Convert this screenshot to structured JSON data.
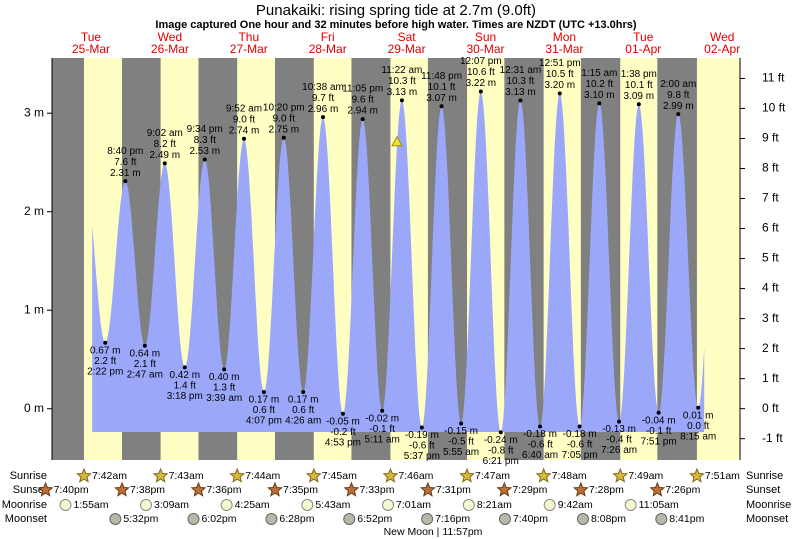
{
  "chart_data": {
    "type": "tide",
    "title": "Punakaiki: rising  spring tide at 2.7m (9.0ft)",
    "subtitle": "Image captured One hour and 32 minutes before high water. Times are NZDT (UTC +13.0hrs)",
    "capture_level": 2.7,
    "ylim": [
      -0.52,
      3.56
    ],
    "yticks": [
      {
        "value": 0,
        "label": "0 m"
      },
      {
        "value": 1,
        "label": "1 m"
      },
      {
        "value": 2,
        "label": "2 m"
      },
      {
        "value": 3,
        "label": "3 m"
      }
    ],
    "y2lim": [
      -1.71,
      11.68
    ],
    "y2ticks": [
      {
        "value": -1,
        "label": "-1 ft"
      },
      {
        "value": 0,
        "label": "0 ft"
      },
      {
        "value": 1,
        "label": "1 ft"
      },
      {
        "value": 2,
        "label": "2 ft"
      },
      {
        "value": 3,
        "label": "3 ft"
      },
      {
        "value": 4,
        "label": "4 ft"
      },
      {
        "value": 5,
        "label": "5 ft"
      },
      {
        "value": 6,
        "label": "6 ft"
      },
      {
        "value": 7,
        "label": "7 ft"
      },
      {
        "value": 8,
        "label": "8 ft"
      },
      {
        "value": 9,
        "label": "9 ft"
      },
      {
        "value": 10,
        "label": "10 ft"
      },
      {
        "value": 11,
        "label": "11 ft"
      }
    ],
    "color": "#9ba8fa",
    "days": [
      {
        "day": "Tue",
        "date": "25-Mar",
        "extremes": [
          {
            "time": "2:22 pm",
            "value": 0.67,
            "value_label": "0.67 m",
            "ft_label": "2.2 ft"
          },
          {
            "time": "8:40 pm",
            "value": 2.31,
            "value_label": "2.31 m",
            "ft_label": "7.6 ft"
          }
        ]
      },
      {
        "day": "Wed",
        "date": "26-Mar",
        "extremes": [
          {
            "time": "2:47 am",
            "value": 0.64,
            "value_label": "0.64 m",
            "ft_label": "2.1 ft"
          },
          {
            "time": "9:02 am",
            "value": 2.49,
            "value_label": "2.49 m",
            "ft_label": "8.2 ft"
          },
          {
            "time": "3:18 pm",
            "value": 0.42,
            "value_label": "0.42 m",
            "ft_label": "1.4 ft"
          },
          {
            "time": "9:34 pm",
            "value": 2.53,
            "value_label": "2.53 m",
            "ft_label": "8.3 ft"
          }
        ]
      },
      {
        "day": "Thu",
        "date": "27-Mar",
        "extremes": [
          {
            "time": "3:39 am",
            "value": 0.4,
            "value_label": "0.40 m",
            "ft_label": "1.3 ft"
          },
          {
            "time": "9:52 am",
            "value": 2.74,
            "value_label": "2.74 m",
            "ft_label": "9.0 ft"
          },
          {
            "time": "4:07 pm",
            "value": 0.17,
            "value_label": "0.17 m",
            "ft_label": "0.6 ft"
          },
          {
            "time": "10:20 pm",
            "value": 2.75,
            "value_label": "2.75 m",
            "ft_label": "9.0 ft"
          }
        ]
      },
      {
        "day": "Fri",
        "date": "28-Mar",
        "extremes": [
          {
            "time": "4:26 am",
            "value": 0.17,
            "value_label": "0.17 m",
            "ft_label": "0.6 ft"
          },
          {
            "time": "10:38 am",
            "value": 2.96,
            "value_label": "2.96 m",
            "ft_label": "9.7 ft"
          },
          {
            "time": "4:53 pm",
            "value": -0.05,
            "value_label": "-0.05 m",
            "ft_label": "-0.2 ft"
          },
          {
            "time": "11:05 pm",
            "value": 2.94,
            "value_label": "2.94 m",
            "ft_label": "9.6 ft"
          }
        ]
      },
      {
        "day": "Sat",
        "date": "29-Mar",
        "extremes": [
          {
            "time": "5:11 am",
            "value": -0.02,
            "value_label": "-0.02 m",
            "ft_label": "-0.1 ft"
          },
          {
            "time": "11:22 am",
            "value": 3.13,
            "value_label": "3.13 m",
            "ft_label": "10.3 ft"
          },
          {
            "time": "5:37 pm",
            "value": -0.19,
            "value_label": "-0.19 m",
            "ft_label": "-0.6 ft"
          },
          {
            "time": "11:48 pm",
            "value": 3.07,
            "value_label": "3.07 m",
            "ft_label": "10.1 ft"
          }
        ]
      },
      {
        "day": "Sun",
        "date": "30-Mar",
        "extremes": [
          {
            "time": "5:55 am",
            "value": -0.15,
            "value_label": "-0.15 m",
            "ft_label": "-0.5 ft"
          },
          {
            "time": "12:07 pm",
            "value": 3.22,
            "value_label": "3.22 m",
            "ft_label": "10.6 ft"
          },
          {
            "time": "6:21 pm",
            "value": -0.24,
            "value_label": "-0.24 m",
            "ft_label": "-0.8 ft"
          }
        ]
      },
      {
        "day": "Mon",
        "date": "31-Mar",
        "extremes": [
          {
            "time": "12:31 am",
            "value": 3.13,
            "value_label": "3.13 m",
            "ft_label": "10.3 ft"
          },
          {
            "time": "6:40 am",
            "value": -0.18,
            "value_label": "-0.18 m",
            "ft_label": "-0.6 ft"
          },
          {
            "time": "12:51 pm",
            "value": 3.2,
            "value_label": "3.20 m",
            "ft_label": "10.5 ft"
          },
          {
            "time": "7:05 pm",
            "value": -0.18,
            "value_label": "-0.18 m",
            "ft_label": "-0.6 ft"
          }
        ]
      },
      {
        "day": "Tue",
        "date": "01-Apr",
        "extremes": [
          {
            "time": "1:15 am",
            "value": 3.1,
            "value_label": "3.10 m",
            "ft_label": "10.2 ft"
          },
          {
            "time": "7:26 am",
            "value": -0.13,
            "value_label": "-0.13 m",
            "ft_label": "-0.4 ft"
          },
          {
            "time": "1:38 pm",
            "value": 3.09,
            "value_label": "3.09 m",
            "ft_label": "10.1 ft"
          },
          {
            "time": "7:51 pm",
            "value": -0.04,
            "value_label": "-0.04 m",
            "ft_label": "-0.1 ft"
          }
        ]
      },
      {
        "day": "Wed",
        "date": "02-Apr",
        "extremes": [
          {
            "time": "2:00 am",
            "value": 2.99,
            "value_label": "2.99 m",
            "ft_label": "9.8 ft"
          },
          {
            "time": "8:15 am",
            "value": 0.01,
            "value_label": "0.01 m",
            "ft_label": "0.0 ft"
          }
        ]
      }
    ],
    "sun_moon": {
      "labels": [
        "Sunrise",
        "Sunset",
        "Moonrise",
        "Moonset"
      ],
      "sunrise": [
        "7:42am",
        "7:43am",
        "7:44am",
        "7:45am",
        "7:46am",
        "7:47am",
        "7:48am",
        "7:49am",
        "7:51am"
      ],
      "sunset": [
        "7:40pm",
        "7:38pm",
        "7:36pm",
        "7:35pm",
        "7:33pm",
        "7:31pm",
        "7:29pm",
        "7:28pm",
        "7:26pm"
      ],
      "moonrise": [
        "1:55am",
        "3:09am",
        "4:25am",
        "5:43am",
        "7:01am",
        "8:21am",
        "9:42am",
        "11:05am"
      ],
      "moonset": [
        "5:32pm",
        "6:02pm",
        "6:28pm",
        "6:52pm",
        "7:16pm",
        "7:40pm",
        "8:08pm",
        "8:41pm"
      ]
    },
    "new_moon": "New Moon | 11:57pm"
  }
}
